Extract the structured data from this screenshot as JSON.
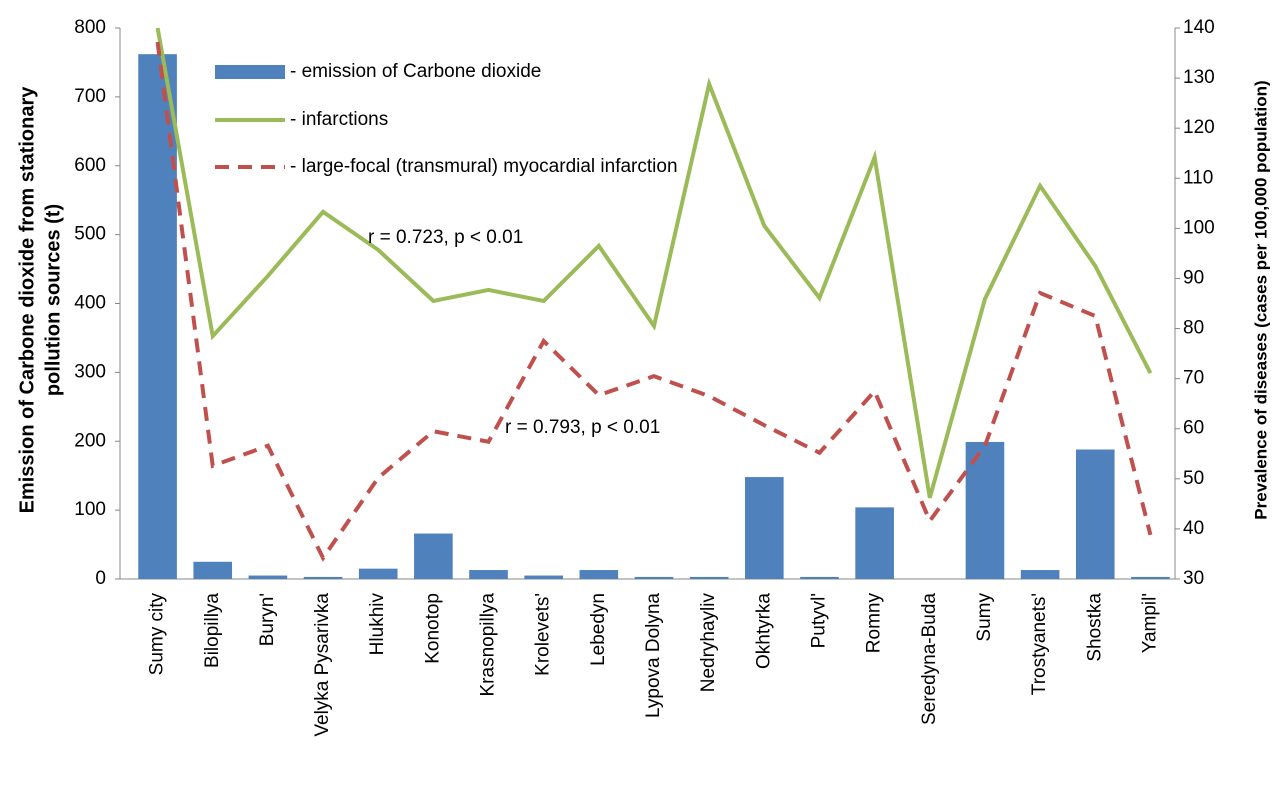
{
  "chart_data": {
    "type": "bar_line",
    "ylabel": [
      "Emission of Carbone dioxide from stationary",
      "pollution sources (t)"
    ],
    "y2label": "Prevalence of diseases (cases per 100,000 population)",
    "categories": [
      "Sumy city",
      "Bilopillya",
      "Buryn'",
      "Velyka Pysarivka",
      "Hlukhiv",
      "Konotop",
      "Krasnopillya",
      "Krolevets'",
      "Lebedyn",
      "Lypova Dolyna",
      "Nedryhayliv",
      "Okhtyrka",
      "Putyvl'",
      "Romny",
      "Seredyna-Buda",
      "Sumy",
      "Trostyanets'",
      "Shostka",
      "Yampil'"
    ],
    "series": [
      {
        "name": "- emission of Carbone dioxide",
        "color": "#4f81bd",
        "kind": "bar",
        "axis": "y",
        "values": [
          762,
          25,
          5,
          3,
          15,
          66,
          13,
          5,
          13,
          3,
          3,
          148,
          3,
          104,
          0,
          199,
          13,
          188,
          3
        ]
      },
      {
        "name": "- infarctions",
        "color": "#9bbb59",
        "kind": "line",
        "axis": "y2",
        "values": [
          140,
          78.5,
          90.5,
          103.3,
          95.7,
          85.5,
          87.7,
          85.5,
          96.5,
          80.5,
          128.8,
          100.5,
          86.1,
          114.2,
          46.2,
          85.9,
          108.5,
          92.5,
          71.1
        ]
      },
      {
        "name": "- large-focal (transmural) myocardial infarction",
        "color": "#c0504d",
        "kind": "dashed",
        "axis": "y2",
        "values": [
          137.2,
          52.6,
          56.6,
          34.2,
          50.2,
          59.5,
          57.4,
          77.5,
          66.7,
          70.5,
          66.5,
          60.7,
          55.2,
          67.5,
          41.6,
          56.6,
          87.1,
          82.5,
          38.8
        ]
      }
    ],
    "annotations": [
      "r = 0.723, p < 0.01",
      "r = 0.793, p < 0.01"
    ],
    "ylim": [
      0,
      800
    ],
    "yticks": [
      0,
      100,
      200,
      300,
      400,
      500,
      600,
      700,
      800
    ],
    "y2lim": [
      30,
      140
    ],
    "y2ticks": [
      30,
      40,
      50,
      60,
      70,
      80,
      90,
      100,
      110,
      120,
      130,
      140
    ]
  }
}
